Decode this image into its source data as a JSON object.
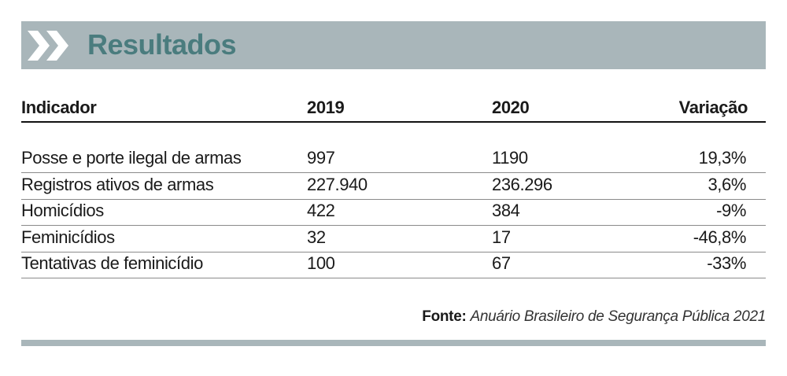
{
  "header": {
    "title": "Resultados"
  },
  "table": {
    "columns": [
      "Indicador",
      "2019",
      "2020",
      "Variação"
    ],
    "rows": [
      [
        "Posse e porte ilegal de armas",
        "997",
        "1190",
        "19,3%"
      ],
      [
        "Registros ativos de armas",
        "227.940",
        "236.296",
        "3,6%"
      ],
      [
        "Homicídios",
        "422",
        "384",
        "-9%"
      ],
      [
        "Feminicídios",
        "32",
        "17",
        "-46,8%"
      ],
      [
        "Tentativas de feminicídio",
        "100",
        "67",
        "-33%"
      ]
    ]
  },
  "source": {
    "label": "Fonte:",
    "text": "Anuário Brasileiro de Segurança Pública 2021"
  }
}
